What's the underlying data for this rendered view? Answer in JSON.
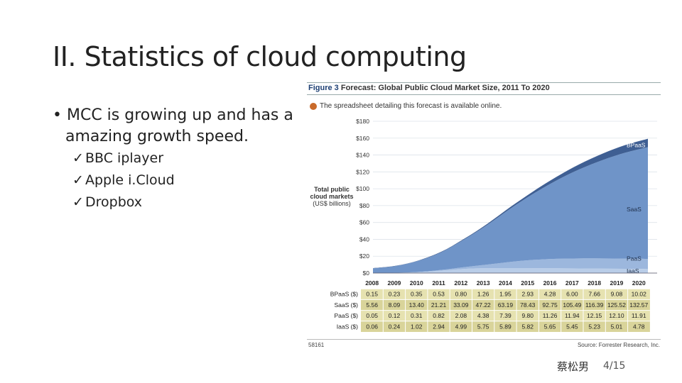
{
  "slide": {
    "title": "II. Statistics of cloud computing",
    "bullet_line1": "• MCC is growing up and has a",
    "bullet_line2": "amazing growth speed.",
    "subitems": [
      "BBC iplayer",
      "Apple i.Cloud",
      "Dropbox"
    ],
    "check_glyph": "✓",
    "author": "蔡松男",
    "page": "4/15"
  },
  "figure": {
    "number": "Figure 3",
    "title": "Forecast: Global Public Cloud Market Size, 2011 To 2020",
    "note": "The spreadsheet detailing this forecast is available online.",
    "ylabel_bold": "Total public cloud markets",
    "ylabel_unit": "(US$ billions)",
    "id": "58161",
    "source": "Source: Forrester Research, Inc."
  },
  "chart_data": {
    "type": "area",
    "stacked": true,
    "x": [
      "2008",
      "2009",
      "2010",
      "2011",
      "2012",
      "2013",
      "2014",
      "2015",
      "2016",
      "2017",
      "2018",
      "2019",
      "2020"
    ],
    "ylim": [
      0,
      180
    ],
    "yticks": [
      "$0",
      "$20",
      "$40",
      "$60",
      "$80",
      "$100",
      "$120",
      "$140",
      "$160",
      "$180"
    ],
    "series": [
      {
        "name": "IaaS",
        "row_label": "IaaS ($)",
        "color": "#b9cde8",
        "values": [
          0.06,
          0.24,
          1.02,
          2.94,
          4.99,
          5.75,
          5.89,
          5.82,
          5.65,
          5.45,
          5.23,
          5.01,
          4.78
        ]
      },
      {
        "name": "PaaS",
        "row_label": "PaaS ($)",
        "color": "#9cb7dd",
        "values": [
          0.05,
          0.12,
          0.31,
          0.82,
          2.08,
          4.38,
          7.39,
          9.8,
          11.26,
          11.94,
          12.15,
          12.1,
          11.91
        ]
      },
      {
        "name": "SaaS",
        "row_label": "SaaS ($)",
        "color": "#6f94c8",
        "values": [
          5.56,
          8.09,
          13.4,
          21.21,
          33.09,
          47.22,
          63.19,
          78.43,
          92.75,
          105.49,
          116.39,
          125.52,
          132.57
        ]
      },
      {
        "name": "BPaaS",
        "row_label": "BPaaS ($)",
        "color": "#3f5f93",
        "values": [
          0.15,
          0.23,
          0.35,
          0.53,
          0.8,
          1.26,
          1.95,
          2.93,
          4.28,
          6.0,
          7.66,
          9.08,
          10.02
        ]
      }
    ],
    "table_rows": [
      {
        "label": "BPaaS ($)",
        "values": [
          "0.15",
          "0.23",
          "0.35",
          "0.53",
          "0.80",
          "1.26",
          "1.95",
          "2.93",
          "4.28",
          "6.00",
          "7.66",
          "9.08",
          "10.02"
        ]
      },
      {
        "label": "SaaS ($)",
        "values": [
          "5.56",
          "8.09",
          "13.40",
          "21.21",
          "33.09",
          "47.22",
          "63.19",
          "78.43",
          "92.75",
          "105.49",
          "116.39",
          "125.52",
          "132.57"
        ]
      },
      {
        "label": "PaaS ($)",
        "values": [
          "0.05",
          "0.12",
          "0.31",
          "0.82",
          "2.08",
          "4.38",
          "7.39",
          "9.80",
          "11.26",
          "11.94",
          "12.15",
          "12.10",
          "11.91"
        ]
      },
      {
        "label": "IaaS ($)",
        "values": [
          "0.06",
          "0.24",
          "1.02",
          "2.94",
          "4.99",
          "5.75",
          "5.89",
          "5.82",
          "5.65",
          "5.45",
          "5.23",
          "5.01",
          "4.78"
        ]
      }
    ],
    "table_colors": {
      "header_bg": "#ffffff",
      "row_a": "#e6e2b0",
      "row_b": "#d9d49a"
    }
  }
}
